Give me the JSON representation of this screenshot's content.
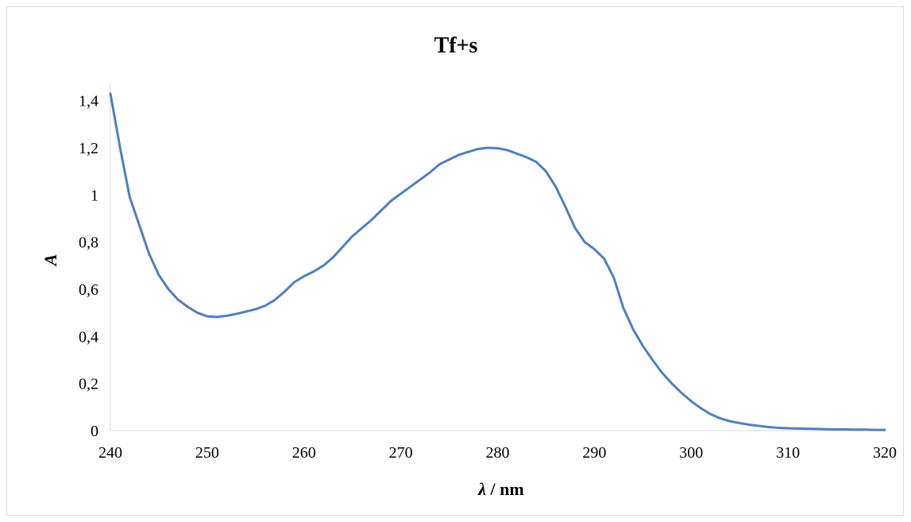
{
  "chart_data": {
    "type": "line",
    "title": "Tf+s",
    "xlabel_symbol": "λ",
    "xlabel_unit": " / nm",
    "ylabel": "A",
    "xlim": [
      240,
      320
    ],
    "ylim": [
      0,
      1.5
    ],
    "x_ticks": [
      240,
      250,
      260,
      270,
      280,
      290,
      300,
      310,
      320
    ],
    "x_tick_labels": [
      "240",
      "250",
      "260",
      "270",
      "280",
      "290",
      "300",
      "310",
      "320"
    ],
    "y_ticks": [
      0,
      0.2,
      0.4,
      0.6,
      0.8,
      1,
      1.2,
      1.4
    ],
    "y_tick_labels": [
      "0",
      "0,2",
      "0,4",
      "0,6",
      "0,8",
      "1",
      "1,2",
      "1,4"
    ],
    "grid": false,
    "legend": "none",
    "series": [
      {
        "color": "#4f7fbd",
        "x": [
          240,
          241,
          242,
          243,
          244,
          245,
          246,
          247,
          248,
          249,
          250,
          251,
          252,
          253,
          254,
          255,
          256,
          257,
          258,
          259,
          260,
          261,
          262,
          263,
          264,
          265,
          266,
          267,
          268,
          269,
          270,
          271,
          272,
          273,
          274,
          275,
          276,
          277,
          278,
          279,
          280,
          281,
          282,
          283,
          284,
          285,
          286,
          287,
          288,
          289,
          290,
          291,
          292,
          293,
          294,
          295,
          296,
          297,
          298,
          299,
          300,
          301,
          302,
          303,
          304,
          305,
          306,
          307,
          308,
          309,
          310,
          311,
          312,
          313,
          314,
          315,
          316,
          317,
          318,
          319,
          320
        ],
        "y": [
          1.43,
          1.2,
          0.99,
          0.87,
          0.75,
          0.66,
          0.6,
          0.555,
          0.525,
          0.5,
          0.485,
          0.482,
          0.487,
          0.495,
          0.505,
          0.515,
          0.53,
          0.555,
          0.59,
          0.63,
          0.655,
          0.675,
          0.7,
          0.735,
          0.78,
          0.825,
          0.86,
          0.895,
          0.935,
          0.975,
          1.005,
          1.035,
          1.065,
          1.095,
          1.13,
          1.15,
          1.17,
          1.183,
          1.195,
          1.2,
          1.198,
          1.19,
          1.175,
          1.16,
          1.14,
          1.1,
          1.035,
          0.95,
          0.86,
          0.8,
          0.77,
          0.73,
          0.65,
          0.52,
          0.43,
          0.36,
          0.3,
          0.245,
          0.2,
          0.16,
          0.125,
          0.095,
          0.07,
          0.052,
          0.04,
          0.032,
          0.025,
          0.02,
          0.015,
          0.012,
          0.01,
          0.009,
          0.008,
          0.007,
          0.006,
          0.005,
          0.005,
          0.004,
          0.004,
          0.003,
          0.003
        ]
      }
    ]
  }
}
